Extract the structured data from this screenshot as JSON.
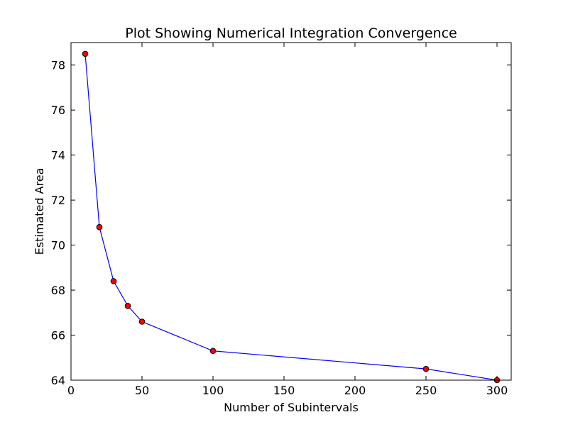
{
  "chart_data": {
    "type": "line",
    "title": "Plot Showing Numerical Integration Convergence",
    "xlabel": "Number of Subintervals",
    "ylabel": "Estimated Area",
    "xlim": [
      0,
      310
    ],
    "ylim": [
      64,
      79
    ],
    "xticks": [
      0,
      50,
      100,
      150,
      200,
      250,
      300
    ],
    "yticks": [
      64,
      66,
      68,
      70,
      72,
      74,
      76,
      78
    ],
    "xtick_labels": [
      "0",
      "50",
      "100",
      "150",
      "200",
      "250",
      "300"
    ],
    "ytick_labels": [
      "64",
      "66",
      "68",
      "70",
      "72",
      "74",
      "76",
      "78"
    ],
    "grid": false,
    "legend": "none",
    "colors": {
      "line": "#0000ff",
      "marker_face": "#ff0000",
      "marker_edge": "#000000"
    },
    "series": [
      {
        "x": [
          10,
          20,
          30,
          40,
          50,
          100,
          250,
          300
        ],
        "y": [
          78.5,
          70.8,
          68.4,
          67.3,
          66.6,
          65.3,
          64.5,
          64.0
        ]
      }
    ]
  }
}
